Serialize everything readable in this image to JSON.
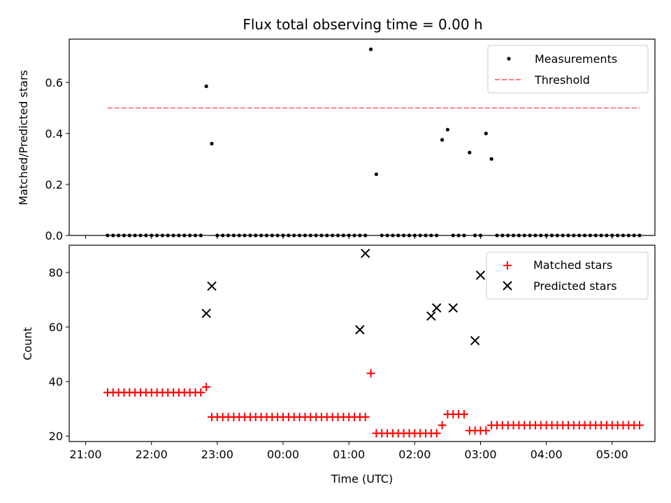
{
  "chart_data": [
    {
      "type": "scatter",
      "title": "Flux total observing time = 0.00 h",
      "xlabel": "",
      "ylabel": "Matched/Predicted stars",
      "ylim": [
        0,
        0.77
      ],
      "yticks": [
        "0.0",
        "0.2",
        "0.4",
        "0.6"
      ],
      "legend": {
        "placement": "top-right",
        "entries": [
          "Measurements",
          "Threshold"
        ]
      },
      "series": [
        {
          "name": "Measurements",
          "marker": "dot",
          "color": "#000000",
          "x": [
            "21:20",
            "21:25",
            "21:30",
            "21:35",
            "21:40",
            "21:45",
            "21:50",
            "21:55",
            "22:00",
            "22:05",
            "22:10",
            "22:15",
            "22:20",
            "22:25",
            "22:30",
            "22:35",
            "22:40",
            "22:45",
            "22:50",
            "22:55",
            "23:00",
            "23:05",
            "23:10",
            "23:15",
            "23:20",
            "23:25",
            "23:30",
            "23:35",
            "23:40",
            "23:45",
            "23:50",
            "23:55",
            "00:00",
            "00:05",
            "00:10",
            "00:15",
            "00:20",
            "00:25",
            "00:30",
            "00:35",
            "00:40",
            "00:45",
            "00:50",
            "00:55",
            "01:00",
            "01:05",
            "01:10",
            "01:15",
            "01:20",
            "01:25",
            "01:30",
            "01:35",
            "01:40",
            "01:45",
            "01:50",
            "01:55",
            "02:00",
            "02:05",
            "02:10",
            "02:15",
            "02:20",
            "02:25",
            "02:30",
            "02:35",
            "02:40",
            "02:45",
            "02:50",
            "02:55",
            "03:00",
            "03:05",
            "03:10",
            "03:15",
            "03:20",
            "03:25",
            "03:30",
            "03:35",
            "03:40",
            "03:45",
            "03:50",
            "03:55",
            "04:00",
            "04:05",
            "04:10",
            "04:15",
            "04:20",
            "04:25",
            "04:30",
            "04:35",
            "04:40",
            "04:45",
            "04:50",
            "04:55",
            "05:00",
            "05:05",
            "05:10",
            "05:15",
            "05:20",
            "05:25"
          ],
          "y": [
            0,
            0,
            0,
            0,
            0,
            0,
            0,
            0,
            0,
            0,
            0,
            0,
            0,
            0,
            0,
            0,
            0,
            0,
            0.585,
            0.36,
            0,
            0,
            0,
            0,
            0,
            0,
            0,
            0,
            0,
            0,
            0,
            0,
            0,
            0,
            0,
            0,
            0,
            0,
            0,
            0,
            0,
            0,
            0,
            0,
            0,
            0,
            0,
            0,
            0.73,
            0.24,
            0,
            0,
            0,
            0,
            0,
            0,
            0,
            0,
            0,
            0,
            0,
            0.375,
            0.415,
            0,
            0,
            0,
            0.325,
            0,
            0,
            0.4,
            0.3,
            0,
            0,
            0,
            0,
            0,
            0,
            0,
            0,
            0,
            0,
            0,
            0,
            0,
            0,
            0,
            0,
            0,
            0,
            0,
            0,
            0,
            0,
            0,
            0,
            0,
            0,
            0
          ]
        },
        {
          "name": "Threshold",
          "style": "dashed",
          "color": "#ff8080",
          "x": [
            "21:20",
            "05:25"
          ],
          "y": [
            0.5,
            0.5
          ]
        }
      ]
    },
    {
      "type": "scatter",
      "title": "",
      "xlabel": "Time (UTC)",
      "ylabel": "Count",
      "ylim": [
        18,
        90
      ],
      "yticks": [
        "20",
        "40",
        "60",
        "80"
      ],
      "xticks": [
        "21:00",
        "22:00",
        "23:00",
        "00:00",
        "01:00",
        "02:00",
        "03:00",
        "04:00",
        "05:00"
      ],
      "legend": {
        "placement": "top-right",
        "entries": [
          "Matched stars",
          "Predicted stars"
        ]
      },
      "series": [
        {
          "name": "Matched stars",
          "marker": "plus",
          "color": "#ff0000",
          "x": [
            "21:20",
            "21:25",
            "21:30",
            "21:35",
            "21:40",
            "21:45",
            "21:50",
            "21:55",
            "22:00",
            "22:05",
            "22:10",
            "22:15",
            "22:20",
            "22:25",
            "22:30",
            "22:35",
            "22:40",
            "22:45",
            "22:50",
            "22:55",
            "23:00",
            "23:05",
            "23:10",
            "23:15",
            "23:20",
            "23:25",
            "23:30",
            "23:35",
            "23:40",
            "23:45",
            "23:50",
            "23:55",
            "00:00",
            "00:05",
            "00:10",
            "00:15",
            "00:20",
            "00:25",
            "00:30",
            "00:35",
            "00:40",
            "00:45",
            "00:50",
            "00:55",
            "01:00",
            "01:05",
            "01:10",
            "01:15",
            "01:20",
            "01:25",
            "01:30",
            "01:35",
            "01:40",
            "01:45",
            "01:50",
            "01:55",
            "02:00",
            "02:05",
            "02:10",
            "02:15",
            "02:20",
            "02:25",
            "02:30",
            "02:35",
            "02:40",
            "02:45",
            "02:50",
            "02:55",
            "03:00",
            "03:05",
            "03:10",
            "03:15",
            "03:20",
            "03:25",
            "03:30",
            "03:35",
            "03:40",
            "03:45",
            "03:50",
            "03:55",
            "04:00",
            "04:05",
            "04:10",
            "04:15",
            "04:20",
            "04:25",
            "04:30",
            "04:35",
            "04:40",
            "04:45",
            "04:50",
            "04:55",
            "05:00",
            "05:05",
            "05:10",
            "05:15",
            "05:20",
            "05:25"
          ],
          "y": [
            36,
            36,
            36,
            36,
            36,
            36,
            36,
            36,
            36,
            36,
            36,
            36,
            36,
            36,
            36,
            36,
            36,
            36,
            38,
            27,
            27,
            27,
            27,
            27,
            27,
            27,
            27,
            27,
            27,
            27,
            27,
            27,
            27,
            27,
            27,
            27,
            27,
            27,
            27,
            27,
            27,
            27,
            27,
            27,
            27,
            27,
            27,
            27,
            43,
            21,
            21,
            21,
            21,
            21,
            21,
            21,
            21,
            21,
            21,
            21,
            21,
            24,
            28,
            28,
            28,
            28,
            22,
            22,
            22,
            22,
            24,
            24,
            24,
            24,
            24,
            24,
            24,
            24,
            24,
            24,
            24,
            24,
            24,
            24,
            24,
            24,
            24,
            24,
            24,
            24,
            24,
            24,
            24,
            24,
            24,
            24,
            24,
            24
          ]
        },
        {
          "name": "Predicted stars",
          "marker": "x",
          "color": "#000000",
          "x": [
            "22:50",
            "22:55",
            "01:10",
            "01:15",
            "02:15",
            "02:20",
            "02:35",
            "02:55",
            "03:00"
          ],
          "y": [
            65,
            75,
            59,
            87,
            64,
            67,
            67,
            55,
            79
          ]
        }
      ]
    }
  ]
}
